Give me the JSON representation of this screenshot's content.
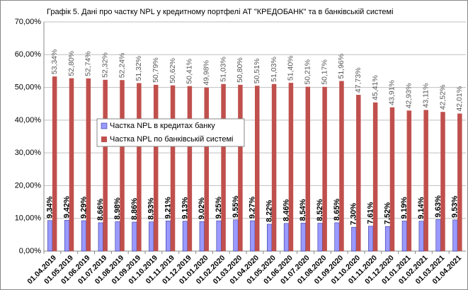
{
  "chart_data": {
    "type": "bar",
    "title": "Графік 5. Дані про частку NPL у кредитному портфелі АТ \"КРЕДОБАНК\" та в банківській системі",
    "categories": [
      "01.04.2019",
      "01.05.2019",
      "01.06.2019",
      "01.07.2019",
      "01.08.2019",
      "01.09.2019",
      "01.10.2019",
      "01.11.2019",
      "01.12.2019",
      "01.01.2020",
      "01.02.2020",
      "01.03.2020",
      "01.04.2020",
      "01.05.2020",
      "01.06.2020",
      "01.07.2020",
      "01.08.2020",
      "01.09.2020",
      "01.10.2020",
      "01.11.2020",
      "01.12.2020",
      "01.01.2021",
      "01.02.2021",
      "01.03.2021",
      "01.04.2021"
    ],
    "series": [
      {
        "name": "Частка NPL в кредитах банку",
        "color": "#9999ff",
        "values": [
          9.34,
          9.42,
          9.29,
          8.66,
          8.98,
          8.86,
          8.93,
          9.21,
          9.13,
          9.02,
          9.25,
          9.55,
          9.27,
          8.22,
          8.46,
          8.54,
          8.52,
          8.65,
          7.3,
          7.61,
          7.52,
          9.19,
          9.14,
          9.63,
          9.53
        ],
        "value_labels": [
          "9,34%",
          "9,42%",
          "9,29%",
          "8,66%",
          "8,98%",
          "8,86%",
          "8,93%",
          "9,21%",
          "9,13%",
          "9,02%",
          "9,25%",
          "9,55%",
          "9,27%",
          "8,22%",
          "8,46%",
          "8,54%",
          "8,52%",
          "8,65%",
          "7,30%",
          "7,61%",
          "7,52%",
          "9,19%",
          "9,14%",
          "9,63%",
          "9,53%"
        ]
      },
      {
        "name": "Частка NPL по банківській системі",
        "color": "#c0504d",
        "values": [
          53.34,
          52.8,
          52.74,
          52.32,
          52.24,
          51.32,
          50.79,
          50.62,
          50.41,
          49.98,
          51.03,
          50.8,
          50.51,
          51.03,
          51.4,
          50.21,
          50.17,
          51.96,
          47.73,
          45.41,
          43.91,
          42.93,
          43.11,
          42.52,
          42.01
        ],
        "value_labels": [
          "53,34%",
          "52,80%",
          "52,74%",
          "52,32%",
          "52,24%",
          "51,32%",
          "50,79%",
          "50,62%",
          "50,41%",
          "49,98%",
          "51,03%",
          "50,80%",
          "50,51%",
          "51,03%",
          "51,40%",
          "50,21%",
          "50,17%",
          "51,96%",
          "47,73%",
          "45,41%",
          "43,91%",
          "42,93%",
          "43,11%",
          "42,52%",
          "42,01%"
        ]
      }
    ],
    "ylim": [
      0,
      70
    ],
    "yticks": [
      {
        "value": 0,
        "label": "0,00%"
      },
      {
        "value": 10,
        "label": "10,00%"
      },
      {
        "value": 20,
        "label": "20,00%"
      },
      {
        "value": 30,
        "label": "30,00%"
      },
      {
        "value": 40,
        "label": "40,00%"
      },
      {
        "value": 50,
        "label": "50,00%"
      },
      {
        "value": 60,
        "label": "60,00%"
      },
      {
        "value": 70,
        "label": "70,00%"
      }
    ],
    "grid": true
  }
}
